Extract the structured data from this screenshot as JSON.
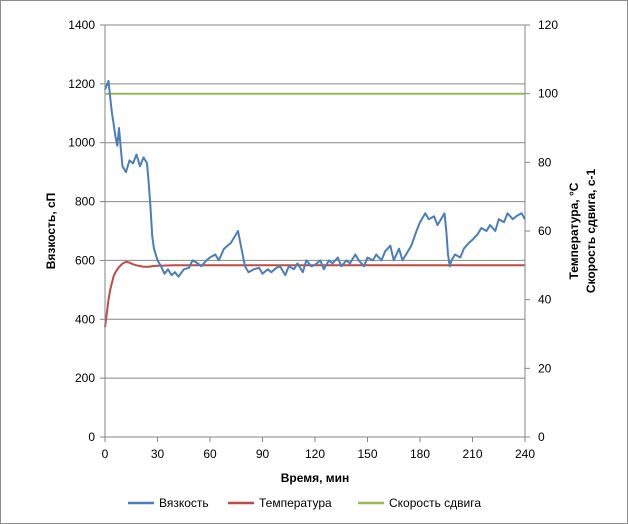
{
  "chart_data": {
    "type": "line",
    "xlabel": "Время, мин",
    "ylabel_left": "Вязкость, сП",
    "ylabel_right_line1": "Температура, °C",
    "ylabel_right_line2": "Скорость сдвига, с-1",
    "xlim": [
      0,
      240
    ],
    "ylim_left": [
      0,
      1400
    ],
    "ylim_right": [
      0,
      120
    ],
    "x_ticks": [
      "0",
      "30",
      "60",
      "90",
      "120",
      "150",
      "180",
      "210",
      "240"
    ],
    "y_left_ticks": [
      "0",
      "200",
      "400",
      "600",
      "800",
      "1000",
      "1200",
      "1400"
    ],
    "y_right_ticks": [
      "0",
      "20",
      "40",
      "60",
      "80",
      "100",
      "120"
    ],
    "grid": "horizontal",
    "legend_position": "bottom",
    "series": [
      {
        "name": "Вязкость",
        "axis": "left",
        "color": "#4a7ebb",
        "x": [
          0,
          2,
          3,
          4,
          5,
          6,
          7,
          8,
          9,
          10,
          12,
          14,
          16,
          18,
          20,
          22,
          24,
          25,
          26,
          27,
          28,
          30,
          32,
          34,
          36,
          38,
          40,
          42,
          45,
          48,
          50,
          53,
          55,
          58,
          60,
          63,
          65,
          68,
          70,
          72,
          74,
          76,
          78,
          80,
          82,
          85,
          88,
          90,
          93,
          95,
          98,
          100,
          103,
          105,
          108,
          110,
          113,
          115,
          118,
          120,
          123,
          125,
          128,
          130,
          133,
          135,
          138,
          140,
          143,
          145,
          148,
          150,
          153,
          155,
          158,
          160,
          163,
          165,
          168,
          170,
          172,
          175,
          178,
          180,
          183,
          185,
          188,
          190,
          192,
          194,
          195,
          196,
          197,
          198,
          200,
          203,
          205,
          208,
          210,
          213,
          215,
          218,
          220,
          223,
          225,
          228,
          230,
          233,
          235,
          238,
          240
        ],
        "values": [
          1180,
          1210,
          1150,
          1100,
          1060,
          1020,
          990,
          1050,
          980,
          920,
          900,
          940,
          930,
          960,
          920,
          950,
          930,
          860,
          780,
          680,
          640,
          600,
          580,
          555,
          570,
          550,
          560,
          545,
          570,
          575,
          600,
          590,
          580,
          600,
          610,
          620,
          600,
          640,
          650,
          660,
          680,
          700,
          640,
          580,
          560,
          570,
          575,
          555,
          570,
          560,
          575,
          580,
          550,
          580,
          570,
          590,
          560,
          600,
          580,
          585,
          600,
          570,
          600,
          590,
          610,
          580,
          600,
          590,
          620,
          600,
          580,
          610,
          600,
          620,
          600,
          630,
          650,
          600,
          640,
          600,
          620,
          650,
          700,
          730,
          760,
          740,
          750,
          720,
          740,
          760,
          700,
          620,
          580,
          600,
          620,
          610,
          640,
          660,
          670,
          690,
          710,
          700,
          720,
          700,
          740,
          730,
          760,
          740,
          750,
          760,
          740
        ]
      },
      {
        "name": "Температура",
        "axis": "right",
        "color": "#be4b48",
        "x": [
          0,
          1,
          2,
          3,
          4,
          5,
          6,
          8,
          10,
          12,
          14,
          16,
          18,
          20,
          22,
          25,
          28,
          30,
          40,
          60,
          80,
          100,
          120,
          140,
          160,
          180,
          200,
          220,
          240
        ],
        "values": [
          32,
          36,
          40,
          43,
          45,
          47,
          48,
          49.5,
          50.5,
          51,
          50.8,
          50.3,
          50,
          49.8,
          49.6,
          49.6,
          49.8,
          49.9,
          50,
          50,
          50,
          50,
          50,
          50,
          50,
          50,
          50,
          50,
          50
        ]
      },
      {
        "name": "Скорость сдвига",
        "axis": "right",
        "color": "#98b954",
        "x": [
          0,
          240
        ],
        "values": [
          100,
          100
        ]
      }
    ]
  }
}
